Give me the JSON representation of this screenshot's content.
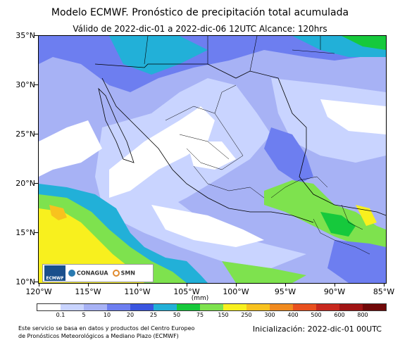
{
  "title": "Modelo ECMWF. Pronóstico de precipitación total acumulada",
  "subtitle": "Válido de 2022-dic-01 a 2022-dic-06 12UTC   Alcance: 120hrs",
  "lat_labels": [
    "35°N",
    "30°N",
    "25°N",
    "20°N",
    "15°N",
    "10°N"
  ],
  "lon_labels": [
    "120°W",
    "115°W",
    "110°W",
    "105°W",
    "100°W",
    "95°W",
    "90°W",
    "85°W"
  ],
  "units": "(mm)",
  "colorbar": {
    "labels": [
      "0.1",
      "5",
      "10",
      "20",
      "25",
      "50",
      "75",
      "150",
      "250",
      "300",
      "400",
      "500",
      "600",
      "800"
    ],
    "colors": [
      "#ffffff",
      "#c9d4ff",
      "#a7b2f5",
      "#6d7ef0",
      "#3a55e0",
      "#22b0d8",
      "#16c93c",
      "#7ee24e",
      "#f8f01e",
      "#f8c21e",
      "#f08a1e",
      "#e8501e",
      "#c8281e",
      "#a01414",
      "#700808"
    ]
  },
  "logos": {
    "ecmwf": "ECMWF",
    "conagua": "CONAGUA",
    "smn": "SMN"
  },
  "footer_left": [
    "Este servicio se basa en datos y productos del Centro Europeo",
    "de Pronósticos Meteorológicos a Mediano Plazo (ECMWF)"
  ],
  "footer_right": "Inicialización: 2022-dic-01 00UTC"
}
